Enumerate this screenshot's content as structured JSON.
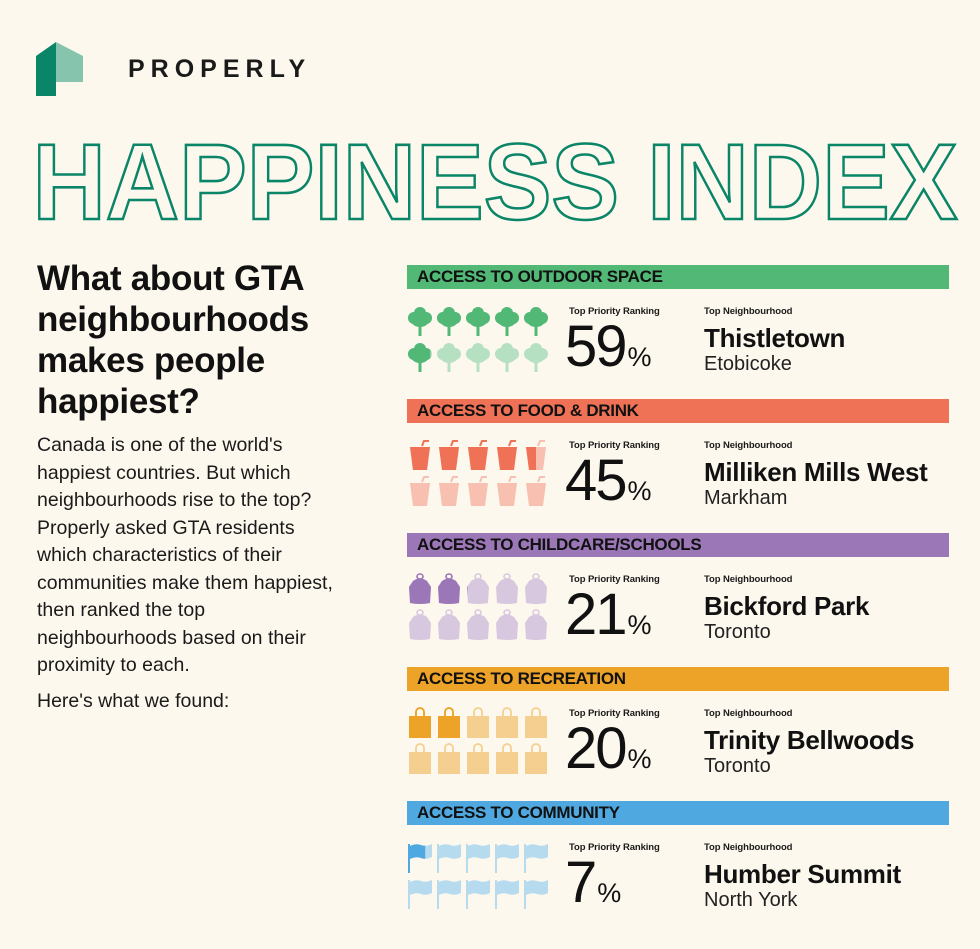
{
  "brand": {
    "name": "PROPERLY",
    "logo_icon": "house-icon",
    "logo_colors": {
      "dark": "#0b8567",
      "light": "#86c4ae"
    }
  },
  "title": "HAPPINESS INDEX",
  "title_color": "#0b8567",
  "intro": {
    "question": "What about GTA neighbourhoods makes people happiest?",
    "body": "Canada is one of the world's happiest countries. But which neighbourhoods rise to the top? Properly asked GTA residents which characteristics of their communities make them happiest, then ranked the top neighbourhoods based on their proximity to each.",
    "found": "Here's what we found:"
  },
  "labels": {
    "rank": "Top Priority Ranking",
    "neighbourhood": "Top Neighbourhood",
    "percent": "%"
  },
  "categories": [
    {
      "title": "ACCESS TO OUTDOOR SPACE",
      "value": "59",
      "neighbourhood": "Thistletown",
      "city": "Etobicoke",
      "icon": "tree-icon",
      "color": "#52b876",
      "light": "#b6e0c2"
    },
    {
      "title": "ACCESS TO FOOD & DRINK",
      "value": "45",
      "neighbourhood": "Milliken Mills West",
      "city": "Markham",
      "icon": "drink-cup-icon",
      "color": "#ef7256",
      "light": "#f7c0b0"
    },
    {
      "title": "ACCESS TO CHILDCARE/SCHOOLS",
      "value": "21",
      "neighbourhood": "Bickford Park",
      "city": "Toronto",
      "icon": "backpack-icon",
      "color": "#9b77b7",
      "light": "#d8c8df"
    },
    {
      "title": "ACCESS TO RECREATION",
      "value": "20",
      "neighbourhood": "Trinity Bellwoods",
      "city": "Toronto",
      "icon": "shopping-bag-icon",
      "color": "#eca328",
      "light": "#f5cf8f"
    },
    {
      "title": "ACCESS TO COMMUNITY",
      "value": "7",
      "neighbourhood": "Humber Summit",
      "city": "North York",
      "icon": "flag-icon",
      "color": "#4fa9e0",
      "light": "#b7dbee"
    }
  ],
  "chart_data": {
    "type": "bar",
    "title": "HAPPINESS INDEX",
    "subtitle": "Top Priority Ranking",
    "categories": [
      "Access to Outdoor Space",
      "Access to Food & Drink",
      "Access to Childcare/Schools",
      "Access to Recreation",
      "Access to Community"
    ],
    "values": [
      59,
      45,
      21,
      20,
      7
    ],
    "unit": "%",
    "representation": "pictogram (10 icons per category, each icon = 10%)",
    "top_neighbourhoods": [
      {
        "category": "Access to Outdoor Space",
        "neighbourhood": "Thistletown",
        "city": "Etobicoke"
      },
      {
        "category": "Access to Food & Drink",
        "neighbourhood": "Milliken Mills West",
        "city": "Markham"
      },
      {
        "category": "Access to Childcare/Schools",
        "neighbourhood": "Bickford Park",
        "city": "Toronto"
      },
      {
        "category": "Access to Recreation",
        "neighbourhood": "Trinity Bellwoods",
        "city": "Toronto"
      },
      {
        "category": "Access to Community",
        "neighbourhood": "Humber Summit",
        "city": "North York"
      }
    ],
    "ylim": [
      0,
      100
    ]
  }
}
